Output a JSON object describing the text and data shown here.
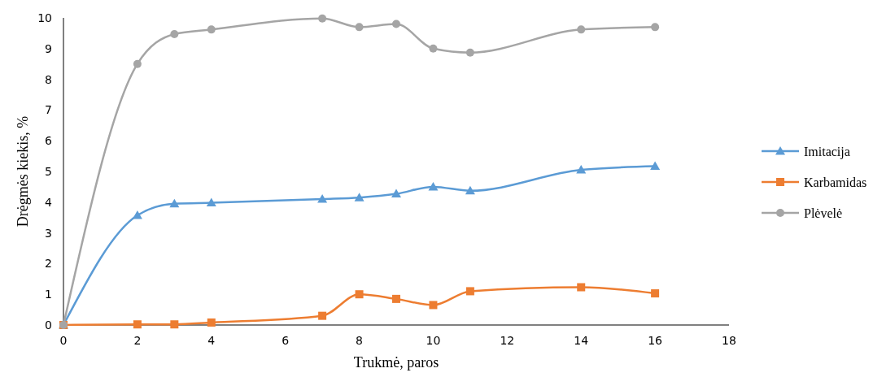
{
  "chart_data": {
    "type": "line",
    "xlabel": "Trukmė, paros",
    "ylabel": "Drėgmės kiekis, %",
    "x": [
      0,
      2,
      3,
      4,
      7,
      8,
      9,
      10,
      11,
      14,
      16
    ],
    "xlim": [
      0,
      18
    ],
    "xticks": [
      0,
      2,
      4,
      6,
      8,
      10,
      12,
      14,
      16,
      18
    ],
    "ylim": [
      0,
      10
    ],
    "yticks": [
      0,
      1,
      2,
      3,
      4,
      5,
      6,
      7,
      8,
      9,
      10
    ],
    "grid": false,
    "legend": "right",
    "series": [
      {
        "name": "Imitacija",
        "color": "#5b9bd5",
        "marker": "triangle",
        "values": [
          0,
          3.57,
          3.95,
          3.98,
          4.1,
          4.15,
          4.27,
          4.5,
          4.37,
          5.05,
          5.17
        ]
      },
      {
        "name": "Karbamidas",
        "color": "#ed7d31",
        "marker": "square",
        "values": [
          0,
          0.02,
          0.02,
          0.08,
          0.3,
          1.0,
          0.85,
          0.65,
          1.1,
          1.23,
          1.03
        ]
      },
      {
        "name": "Plėvelė",
        "color": "#a5a5a5",
        "marker": "circle",
        "values": [
          0,
          8.5,
          9.47,
          9.62,
          9.98,
          9.7,
          9.8,
          9.0,
          8.87,
          9.62,
          9.7
        ]
      }
    ]
  }
}
